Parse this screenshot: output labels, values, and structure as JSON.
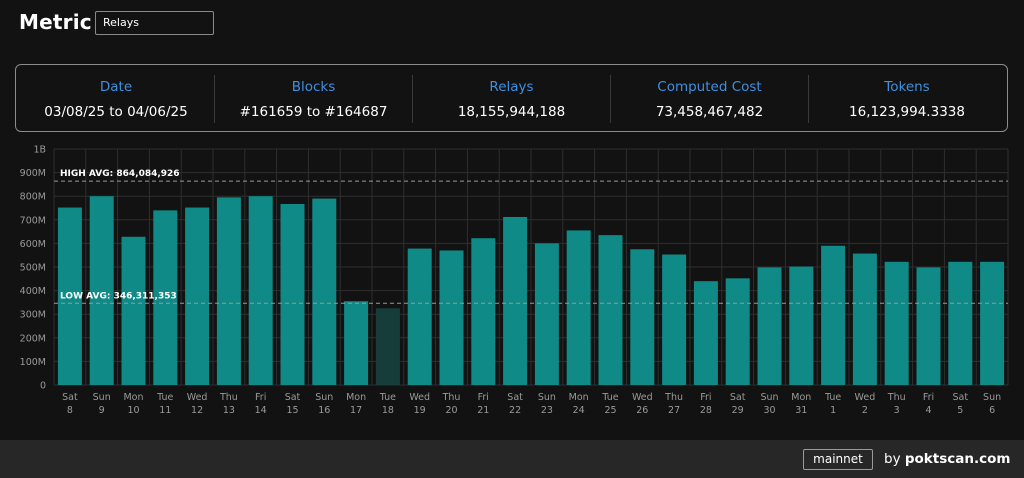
{
  "header": {
    "title": "Metric",
    "selected_metric": "Relays"
  },
  "stats": [
    {
      "label": "Date",
      "value": "03/08/25 to 04/06/25"
    },
    {
      "label": "Blocks",
      "value": "#161659 to #164687"
    },
    {
      "label": "Relays",
      "value": "18,155,944,188"
    },
    {
      "label": "Computed Cost",
      "value": "73,458,467,482"
    },
    {
      "label": "Tokens",
      "value": "16,123,994.3338"
    }
  ],
  "chart_data": {
    "type": "bar",
    "categories": [
      [
        "Sat",
        "8"
      ],
      [
        "Sun",
        "9"
      ],
      [
        "Mon",
        "10"
      ],
      [
        "Tue",
        "11"
      ],
      [
        "Wed",
        "12"
      ],
      [
        "Thu",
        "13"
      ],
      [
        "Fri",
        "14"
      ],
      [
        "Sat",
        "15"
      ],
      [
        "Sun",
        "16"
      ],
      [
        "Mon",
        "17"
      ],
      [
        "Tue",
        "18"
      ],
      [
        "Wed",
        "19"
      ],
      [
        "Thu",
        "20"
      ],
      [
        "Fri",
        "21"
      ],
      [
        "Sat",
        "22"
      ],
      [
        "Sun",
        "23"
      ],
      [
        "Mon",
        "24"
      ],
      [
        "Tue",
        "25"
      ],
      [
        "Wed",
        "26"
      ],
      [
        "Thu",
        "27"
      ],
      [
        "Fri",
        "28"
      ],
      [
        "Sat",
        "29"
      ],
      [
        "Sun",
        "30"
      ],
      [
        "Mon",
        "31"
      ],
      [
        "Tue",
        "1"
      ],
      [
        "Wed",
        "2"
      ],
      [
        "Thu",
        "3"
      ],
      [
        "Fri",
        "4"
      ],
      [
        "Sat",
        "5"
      ],
      [
        "Sun",
        "6"
      ]
    ],
    "values": [
      752000000,
      800000000,
      628000000,
      740000000,
      752000000,
      795000000,
      800000000,
      767000000,
      790000000,
      355000000,
      325000000,
      578000000,
      570000000,
      622000000,
      712000000,
      600000000,
      655000000,
      635000000,
      575000000,
      553000000,
      440000000,
      452000000,
      498000000,
      502000000,
      590000000,
      557000000,
      522000000,
      498000000,
      522000000,
      522000000
    ],
    "highlighted_index": 10,
    "ylim": [
      0,
      1000000000
    ],
    "yticks": [
      "0",
      "100M",
      "200M",
      "300M",
      "400M",
      "500M",
      "600M",
      "700M",
      "800M",
      "900M",
      "1B"
    ],
    "reference_lines": [
      {
        "label": "HIGH AVG: 864,084,926",
        "value": 864084926
      },
      {
        "label": "LOW AVG: 346,311,353",
        "value": 346311353
      }
    ],
    "grid": true,
    "colors": {
      "bar": "#0f8a86",
      "bar_highlight": "#173d3b",
      "grid": "#2f2f2f",
      "ref_line": "#9a9a9a"
    }
  },
  "footer": {
    "network": "mainnet",
    "by": "by",
    "brand": "poktscan.com"
  }
}
